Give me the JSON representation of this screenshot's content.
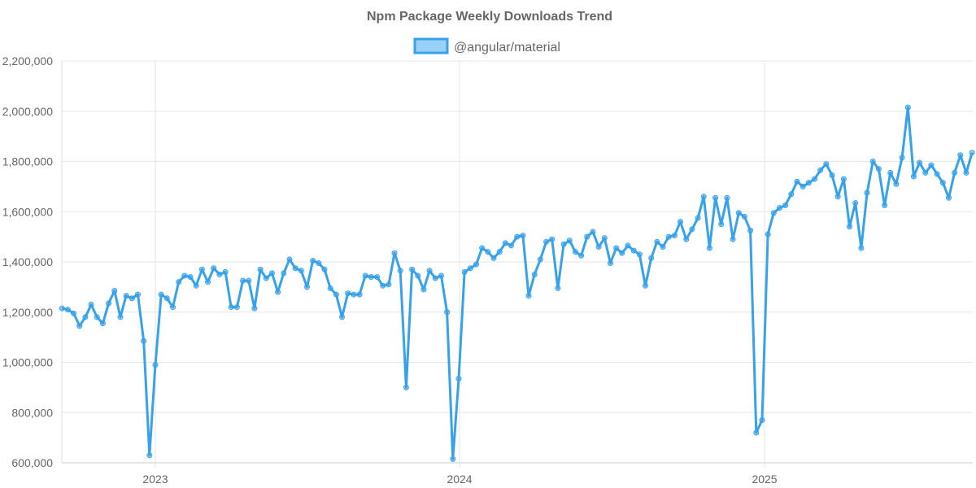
{
  "chart_data": {
    "type": "line",
    "title": "Npm Package Weekly Downloads Trend",
    "legend_position": "top",
    "grid": true,
    "ylim": [
      600000,
      2200000
    ],
    "y_ticks": [
      "600,000",
      "800,000",
      "1,000,000",
      "1,200,000",
      "1,400,000",
      "1,600,000",
      "1,800,000",
      "2,000,000",
      "2,200,000"
    ],
    "x_ticks": [
      "2023",
      "2024",
      "2025"
    ],
    "colors": {
      "line": "#36a2eb",
      "fill": "#9ad0f5"
    },
    "x": [
      "2022-09-11",
      "2022-09-18",
      "2022-09-25",
      "2022-10-02",
      "2022-10-09",
      "2022-10-16",
      "2022-10-23",
      "2022-10-30",
      "2022-11-06",
      "2022-11-13",
      "2022-11-20",
      "2022-11-27",
      "2022-12-04",
      "2022-12-11",
      "2022-12-18",
      "2022-12-25",
      "2023-01-01",
      "2023-01-08",
      "2023-01-15",
      "2023-01-22",
      "2023-01-29",
      "2023-02-05",
      "2023-02-12",
      "2023-02-19",
      "2023-02-26",
      "2023-03-05",
      "2023-03-12",
      "2023-03-19",
      "2023-03-26",
      "2023-04-02",
      "2023-04-09",
      "2023-04-16",
      "2023-04-23",
      "2023-04-30",
      "2023-05-07",
      "2023-05-14",
      "2023-05-21",
      "2023-05-28",
      "2023-06-04",
      "2023-06-11",
      "2023-06-18",
      "2023-06-25",
      "2023-07-02",
      "2023-07-09",
      "2023-07-16",
      "2023-07-23",
      "2023-07-30",
      "2023-08-06",
      "2023-08-13",
      "2023-08-20",
      "2023-08-27",
      "2023-09-03",
      "2023-09-10",
      "2023-09-17",
      "2023-09-24",
      "2023-10-01",
      "2023-10-08",
      "2023-10-15",
      "2023-10-22",
      "2023-10-29",
      "2023-11-05",
      "2023-11-12",
      "2023-11-19",
      "2023-11-26",
      "2023-12-03",
      "2023-12-10",
      "2023-12-17",
      "2023-12-24",
      "2023-12-31",
      "2024-01-07",
      "2024-01-14",
      "2024-01-21",
      "2024-01-28",
      "2024-02-04",
      "2024-02-11",
      "2024-02-18",
      "2024-02-25",
      "2024-03-03",
      "2024-03-10",
      "2024-03-17",
      "2024-03-24",
      "2024-03-31",
      "2024-04-07",
      "2024-04-14",
      "2024-04-21",
      "2024-04-28",
      "2024-05-05",
      "2024-05-12",
      "2024-05-19",
      "2024-05-26",
      "2024-06-02",
      "2024-06-09",
      "2024-06-16",
      "2024-06-23",
      "2024-06-30",
      "2024-07-07",
      "2024-07-14",
      "2024-07-21",
      "2024-07-28",
      "2024-08-04",
      "2024-08-11",
      "2024-08-18",
      "2024-08-25",
      "2024-09-01",
      "2024-09-08",
      "2024-09-15",
      "2024-09-22",
      "2024-09-29",
      "2024-10-06",
      "2024-10-13",
      "2024-10-20",
      "2024-10-27",
      "2024-11-03",
      "2024-11-10",
      "2024-11-17",
      "2024-11-24",
      "2024-12-01",
      "2024-12-08",
      "2024-12-15",
      "2024-12-22",
      "2024-12-29",
      "2025-01-05",
      "2025-01-12",
      "2025-01-19",
      "2025-01-26",
      "2025-02-02",
      "2025-02-09",
      "2025-02-16",
      "2025-02-23",
      "2025-03-02",
      "2025-03-09",
      "2025-03-16",
      "2025-03-23",
      "2025-03-30",
      "2025-04-06",
      "2025-04-13",
      "2025-04-20",
      "2025-04-27",
      "2025-05-04",
      "2025-05-11",
      "2025-05-18",
      "2025-05-25",
      "2025-06-01",
      "2025-06-08",
      "2025-06-15",
      "2025-06-22",
      "2025-06-29",
      "2025-07-06",
      "2025-07-13",
      "2025-07-20",
      "2025-07-27",
      "2025-08-03",
      "2025-08-10",
      "2025-08-17",
      "2025-08-24",
      "2025-08-31",
      "2025-09-07"
    ],
    "series": [
      {
        "name": "@angular/material",
        "values": [
          1215000,
          1210000,
          1195000,
          1145000,
          1180000,
          1230000,
          1180000,
          1155000,
          1235000,
          1285000,
          1180000,
          1265000,
          1255000,
          1270000,
          1085000,
          630000,
          990000,
          1270000,
          1255000,
          1220000,
          1320000,
          1345000,
          1340000,
          1305000,
          1370000,
          1320000,
          1375000,
          1350000,
          1360000,
          1220000,
          1220000,
          1325000,
          1325000,
          1215000,
          1370000,
          1335000,
          1355000,
          1280000,
          1355000,
          1410000,
          1375000,
          1365000,
          1300000,
          1405000,
          1395000,
          1370000,
          1295000,
          1270000,
          1180000,
          1275000,
          1270000,
          1270000,
          1345000,
          1340000,
          1340000,
          1305000,
          1310000,
          1435000,
          1365000,
          900000,
          1370000,
          1345000,
          1290000,
          1365000,
          1335000,
          1345000,
          1200000,
          615000,
          935000,
          1360000,
          1375000,
          1390000,
          1455000,
          1440000,
          1415000,
          1440000,
          1475000,
          1465000,
          1500000,
          1505000,
          1265000,
          1350000,
          1410000,
          1480000,
          1490000,
          1295000,
          1470000,
          1485000,
          1440000,
          1425000,
          1500000,
          1520000,
          1460000,
          1495000,
          1395000,
          1455000,
          1435000,
          1465000,
          1445000,
          1430000,
          1305000,
          1415000,
          1480000,
          1460000,
          1500000,
          1505000,
          1560000,
          1490000,
          1530000,
          1575000,
          1660000,
          1455000,
          1655000,
          1550000,
          1655000,
          1490000,
          1595000,
          1580000,
          1525000,
          720000,
          770000,
          1510000,
          1595000,
          1615000,
          1625000,
          1670000,
          1720000,
          1700000,
          1715000,
          1730000,
          1765000,
          1790000,
          1745000,
          1660000,
          1730000,
          1540000,
          1635000,
          1455000,
          1675000,
          1800000,
          1770000,
          1625000,
          1755000,
          1710000,
          1815000,
          2015000,
          1740000,
          1795000,
          1755000,
          1785000,
          1750000,
          1715000,
          1655000,
          1755000,
          1825000,
          1755000,
          1835000
        ]
      }
    ]
  }
}
